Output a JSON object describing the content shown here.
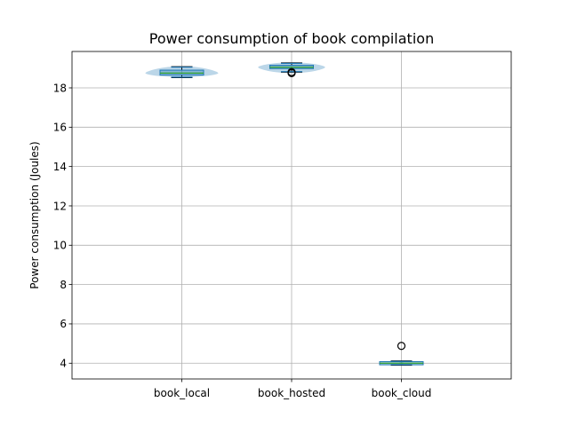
{
  "chart_data": {
    "type": "box",
    "title": "Power consumption of book compilation",
    "xlabel": "",
    "ylabel": "Power consumption (Joules)",
    "ylim": [
      3.2,
      19.85
    ],
    "yticks": [
      4,
      6,
      8,
      10,
      12,
      14,
      16,
      18
    ],
    "grid": true,
    "categories": [
      "book_local",
      "book_hosted",
      "book_cloud"
    ],
    "violins": [
      {
        "min": 18.55,
        "max": 19.1,
        "peak_y": 18.75,
        "width_ratio": 1.0
      },
      {
        "min": 18.75,
        "max": 19.3,
        "peak_y": 19.05,
        "width_ratio": 0.92
      },
      {
        "min": 3.95,
        "max": 4.1,
        "peak_y": 4.0,
        "width_ratio": 0.05
      }
    ],
    "boxes": [
      {
        "whislo": 18.52,
        "q1": 18.65,
        "med": 18.75,
        "q3": 18.9,
        "whishi": 19.08,
        "fliers": []
      },
      {
        "whislo": 18.8,
        "q1": 18.98,
        "med": 19.05,
        "q3": 19.15,
        "whishi": 19.27,
        "fliers": [
          18.75,
          18.8
        ]
      },
      {
        "whislo": 3.9,
        "q1": 3.92,
        "med": 4.0,
        "q3": 4.08,
        "whishi": 4.12,
        "fliers": [
          4.88
        ]
      }
    ],
    "colors": {
      "box": "#1f77b4",
      "median": "#2ca02c",
      "violin": "#1f77b4",
      "whisker": "#000000",
      "grid": "#b0b0b0"
    }
  }
}
